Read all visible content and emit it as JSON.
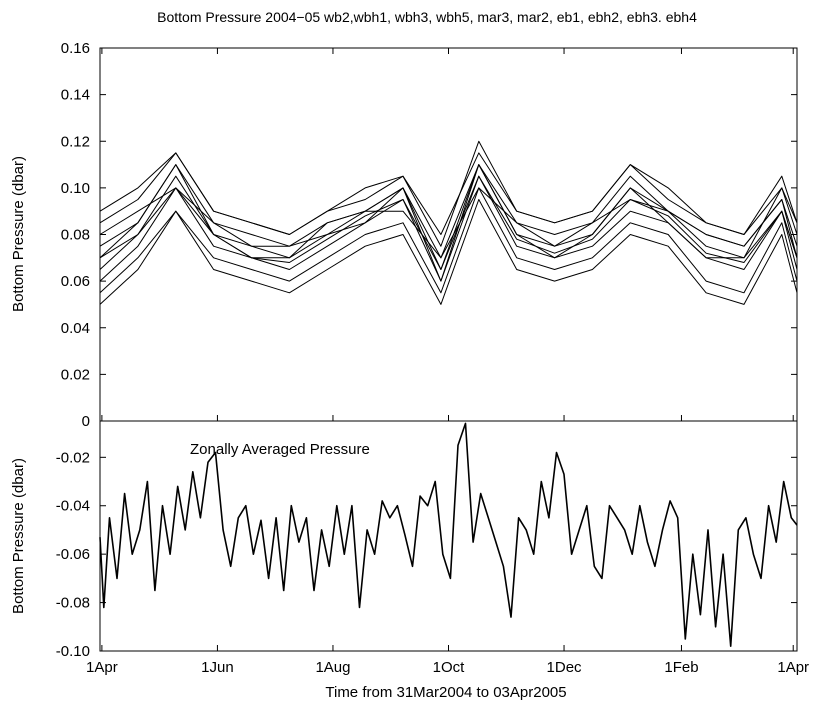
{
  "figure": {
    "title": "Bottom Pressure 2004−05 wb2,wbh1, wbh3, wbh5, mar3, mar2, eb1, ebh2, ebh3. ebh4",
    "xlabel": "Time from 31Mar2004 to 03Apr2005"
  },
  "chart_data": [
    {
      "type": "line",
      "ylabel": "Bottom Pressure (dbar)",
      "ylim": [
        0,
        0.16
      ],
      "yticks": [
        0,
        0.02,
        0.04,
        0.06,
        0.08,
        0.1,
        0.12,
        0.14,
        0.16
      ],
      "ytick_labels": [
        "0",
        "0.02",
        "0.04",
        "0.06",
        "0.08",
        "0.10",
        "0.12",
        "0.14",
        "0.16"
      ],
      "x_range": [
        "2004-03-31",
        "2005-04-03"
      ],
      "xtick_dates": [
        "2004-04-01",
        "2004-06-01",
        "2004-08-01",
        "2004-10-01",
        "2004-12-01",
        "2005-02-01",
        "2005-04-01"
      ],
      "xtick_labels": [
        "1Apr",
        "1Jun",
        "1Aug",
        "1Oct",
        "1Dec",
        "1Feb",
        "1Apr"
      ],
      "grid": false,
      "series_count": 10,
      "line_color": "#000000",
      "series_note": "ten overlapping daily bottom pressure records; approximate envelope values below",
      "x": [
        "2004-03-31",
        "2004-04-20",
        "2004-05-10",
        "2004-05-30",
        "2004-06-19",
        "2004-07-09",
        "2004-07-29",
        "2004-08-18",
        "2004-09-07",
        "2004-09-27",
        "2004-10-17",
        "2004-11-06",
        "2004-11-26",
        "2004-12-16",
        "2005-01-05",
        "2005-01-25",
        "2005-02-14",
        "2005-03-06",
        "2005-03-26",
        "2005-04-03"
      ],
      "series": [
        {
          "values": [
            0.07,
            0.085,
            0.11,
            0.08,
            0.075,
            0.07,
            0.085,
            0.09,
            0.1,
            0.065,
            0.11,
            0.08,
            0.075,
            0.08,
            0.1,
            0.09,
            0.08,
            0.075,
            0.095,
            0.07
          ]
        },
        {
          "values": [
            0.06,
            0.075,
            0.1,
            0.075,
            0.07,
            0.065,
            0.075,
            0.085,
            0.095,
            0.06,
            0.105,
            0.075,
            0.07,
            0.075,
            0.09,
            0.085,
            0.07,
            0.065,
            0.09,
            0.065
          ]
        },
        {
          "values": [
            0.08,
            0.09,
            0.1,
            0.085,
            0.08,
            0.075,
            0.08,
            0.09,
            0.09,
            0.07,
            0.1,
            0.085,
            0.08,
            0.085,
            0.095,
            0.09,
            0.075,
            0.07,
            0.1,
            0.08
          ]
        },
        {
          "values": [
            0.055,
            0.07,
            0.09,
            0.07,
            0.065,
            0.06,
            0.07,
            0.08,
            0.085,
            0.055,
            0.1,
            0.07,
            0.065,
            0.07,
            0.085,
            0.08,
            0.06,
            0.055,
            0.085,
            0.06
          ]
        },
        {
          "values": [
            0.09,
            0.1,
            0.115,
            0.09,
            0.085,
            0.08,
            0.09,
            0.1,
            0.105,
            0.075,
            0.12,
            0.09,
            0.085,
            0.09,
            0.11,
            0.1,
            0.085,
            0.08,
            0.105,
            0.085
          ]
        },
        {
          "values": [
            0.065,
            0.08,
            0.105,
            0.08,
            0.07,
            0.07,
            0.08,
            0.085,
            0.1,
            0.06,
            0.11,
            0.08,
            0.07,
            0.08,
            0.1,
            0.085,
            0.07,
            0.07,
            0.09,
            0.07
          ]
        },
        {
          "values": [
            0.075,
            0.085,
            0.11,
            0.085,
            0.075,
            0.075,
            0.085,
            0.09,
            0.1,
            0.07,
            0.11,
            0.085,
            0.075,
            0.085,
            0.105,
            0.09,
            0.08,
            0.075,
            0.095,
            0.075
          ]
        },
        {
          "values": [
            0.05,
            0.065,
            0.09,
            0.065,
            0.06,
            0.055,
            0.065,
            0.075,
            0.08,
            0.05,
            0.095,
            0.065,
            0.06,
            0.065,
            0.08,
            0.075,
            0.055,
            0.05,
            0.08,
            0.055
          ]
        },
        {
          "values": [
            0.085,
            0.095,
            0.115,
            0.09,
            0.085,
            0.08,
            0.09,
            0.095,
            0.105,
            0.08,
            0.115,
            0.09,
            0.085,
            0.09,
            0.11,
            0.095,
            0.085,
            0.08,
            0.1,
            0.085
          ]
        },
        {
          "values": [
            0.07,
            0.08,
            0.1,
            0.08,
            0.07,
            0.068,
            0.078,
            0.088,
            0.095,
            0.065,
            0.105,
            0.078,
            0.072,
            0.078,
            0.095,
            0.088,
            0.072,
            0.068,
            0.09,
            0.07
          ]
        }
      ]
    },
    {
      "type": "line",
      "ylabel": "Bottom Pressure (dbar)",
      "ylim": [
        -0.1,
        -0.005
      ],
      "yticks": [
        -0.1,
        -0.08,
        -0.06,
        -0.04,
        -0.02
      ],
      "ytick_labels": [
        "-0.10",
        "-0.08",
        "-0.06",
        "-0.04",
        "-0.02"
      ],
      "x_range": [
        "2004-03-31",
        "2005-04-03"
      ],
      "xtick_dates": [
        "2004-04-01",
        "2004-06-01",
        "2004-08-01",
        "2004-10-01",
        "2004-12-01",
        "2005-02-01",
        "2005-04-01"
      ],
      "xtick_labels": [
        "1Apr",
        "1Jun",
        "1Aug",
        "1Oct",
        "1Dec",
        "1Feb",
        "1Apr"
      ],
      "grid": false,
      "line_color": "#000000",
      "annotation": "Zonally Averaged Pressure",
      "series": [
        {
          "x": [
            "2004-03-31",
            "2004-04-02",
            "2004-04-05",
            "2004-04-09",
            "2004-04-13",
            "2004-04-17",
            "2004-04-21",
            "2004-04-25",
            "2004-04-29",
            "2004-05-03",
            "2004-05-07",
            "2004-05-11",
            "2004-05-15",
            "2004-05-19",
            "2004-05-23",
            "2004-05-27",
            "2004-05-31",
            "2004-06-04",
            "2004-06-08",
            "2004-06-12",
            "2004-06-16",
            "2004-06-20",
            "2004-06-24",
            "2004-06-28",
            "2004-07-02",
            "2004-07-06",
            "2004-07-10",
            "2004-07-14",
            "2004-07-18",
            "2004-07-22",
            "2004-07-26",
            "2004-07-30",
            "2004-08-03",
            "2004-08-07",
            "2004-08-11",
            "2004-08-15",
            "2004-08-19",
            "2004-08-23",
            "2004-08-27",
            "2004-08-31",
            "2004-09-04",
            "2004-09-08",
            "2004-09-12",
            "2004-09-16",
            "2004-09-20",
            "2004-09-24",
            "2004-09-28",
            "2004-10-02",
            "2004-10-06",
            "2004-10-10",
            "2004-10-14",
            "2004-10-18",
            "2004-10-22",
            "2004-10-26",
            "2004-10-30",
            "2004-11-03",
            "2004-11-07",
            "2004-11-11",
            "2004-11-15",
            "2004-11-19",
            "2004-11-23",
            "2004-11-27",
            "2004-12-01",
            "2004-12-05",
            "2004-12-09",
            "2004-12-13",
            "2004-12-17",
            "2004-12-21",
            "2004-12-25",
            "2004-12-29",
            "2005-01-02",
            "2005-01-06",
            "2005-01-10",
            "2005-01-14",
            "2005-01-18",
            "2005-01-22",
            "2005-01-26",
            "2005-01-30",
            "2005-02-03",
            "2005-02-07",
            "2005-02-11",
            "2005-02-15",
            "2005-02-19",
            "2005-02-23",
            "2005-02-27",
            "2005-03-03",
            "2005-03-07",
            "2005-03-11",
            "2005-03-15",
            "2005-03-19",
            "2005-03-23",
            "2005-03-27",
            "2005-03-31",
            "2005-04-03"
          ],
          "values": [
            -0.053,
            -0.082,
            -0.045,
            -0.07,
            -0.035,
            -0.06,
            -0.05,
            -0.03,
            -0.075,
            -0.04,
            -0.06,
            -0.032,
            -0.05,
            -0.026,
            -0.045,
            -0.022,
            -0.018,
            -0.05,
            -0.065,
            -0.045,
            -0.04,
            -0.06,
            -0.046,
            -0.07,
            -0.045,
            -0.075,
            -0.04,
            -0.055,
            -0.045,
            -0.075,
            -0.05,
            -0.065,
            -0.04,
            -0.06,
            -0.04,
            -0.082,
            -0.05,
            -0.06,
            -0.038,
            -0.045,
            -0.04,
            -0.052,
            -0.065,
            -0.036,
            -0.04,
            -0.03,
            -0.06,
            -0.07,
            -0.015,
            -0.006,
            -0.055,
            -0.035,
            -0.045,
            -0.055,
            -0.065,
            -0.086,
            -0.045,
            -0.05,
            -0.06,
            -0.03,
            -0.045,
            -0.018,
            -0.027,
            -0.06,
            -0.05,
            -0.04,
            -0.065,
            -0.07,
            -0.04,
            -0.045,
            -0.05,
            -0.06,
            -0.04,
            -0.055,
            -0.065,
            -0.05,
            -0.038,
            -0.045,
            -0.095,
            -0.06,
            -0.085,
            -0.05,
            -0.09,
            -0.06,
            -0.098,
            -0.05,
            -0.045,
            -0.06,
            -0.07,
            -0.04,
            -0.055,
            -0.03,
            -0.045,
            -0.048
          ]
        }
      ]
    }
  ]
}
